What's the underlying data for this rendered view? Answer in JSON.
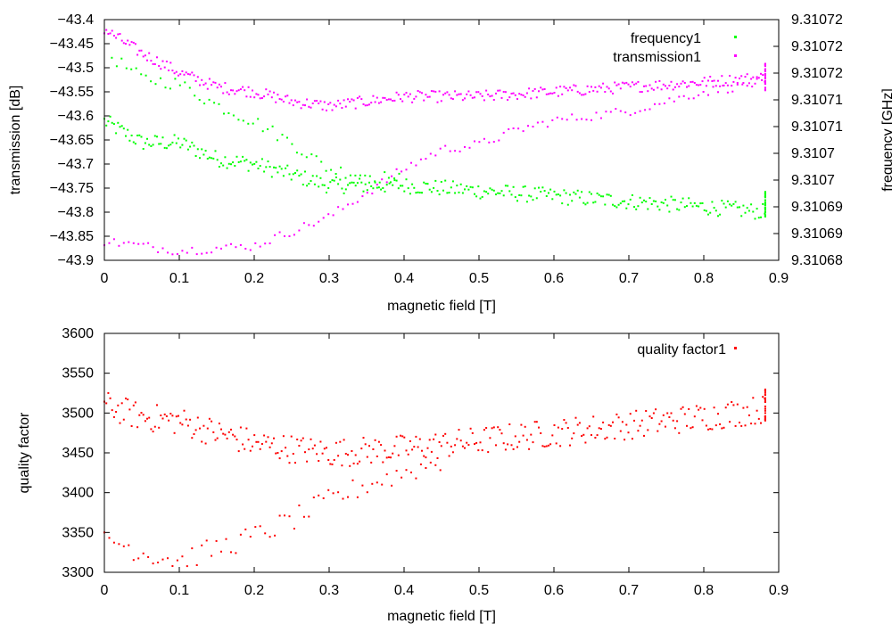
{
  "chart_data": [
    {
      "type": "scatter",
      "xlabel": "magnetic field [T]",
      "ylabel": "transmission [dB]",
      "y2label": "frequency [GHz]",
      "xlim": [
        0,
        0.9
      ],
      "ylim": [
        -43.9,
        -43.4
      ],
      "y2lim": [
        9.31068,
        9.310725
      ],
      "xticks": [
        "0",
        "0.1",
        "0.2",
        "0.3",
        "0.4",
        "0.5",
        "0.6",
        "0.7",
        "0.8",
        "0.9"
      ],
      "yticks": [
        "-43.4",
        "-43.45",
        "-43.5",
        "-43.55",
        "-43.6",
        "-43.65",
        "-43.7",
        "-43.75",
        "-43.8",
        "-43.85",
        "-43.9"
      ],
      "y2ticks": [
        "9.31072",
        "9.31072",
        "9.31072",
        "9.31071",
        "9.31071",
        "9.3107",
        "9.3107",
        "9.31069",
        "9.31069",
        "9.31068"
      ],
      "legend": "top-right",
      "series": [
        {
          "name": "frequency1",
          "axis": "y2",
          "color": "#00ff00",
          "start": {
            "x": 0.0,
            "y": 9.310706
          },
          "upper_branch": [
            [
              0.0,
              9.310706
            ],
            [
              0.05,
              9.310702
            ],
            [
              0.1,
              9.310702
            ],
            [
              0.15,
              9.310699
            ],
            [
              0.2,
              9.310698
            ],
            [
              0.25,
              9.310696
            ],
            [
              0.3,
              9.310694
            ],
            [
              0.4,
              9.310694
            ],
            [
              0.5,
              9.310693
            ],
            [
              0.6,
              9.310692
            ],
            [
              0.7,
              9.310691
            ],
            [
              0.8,
              9.31069
            ],
            [
              0.882,
              9.310689
            ]
          ],
          "lower_branch": [
            [
              0.01,
              9.310718
            ],
            [
              0.05,
              9.310714
            ],
            [
              0.1,
              9.310713
            ],
            [
              0.15,
              9.310709
            ],
            [
              0.2,
              9.310706
            ],
            [
              0.25,
              9.310702
            ],
            [
              0.3,
              9.310697
            ],
            [
              0.35,
              9.310696
            ],
            [
              0.4,
              9.310695
            ]
          ],
          "noise_half_width": 1.5e-06,
          "last_point_spread": [
            9.310688,
            9.310693
          ],
          "last_point_x": 0.882
        },
        {
          "name": "transmission1",
          "axis": "y",
          "color": "#ff00ff",
          "upper_branch": [
            [
              0.0,
              -43.42
            ],
            [
              0.05,
              -43.47
            ],
            [
              0.1,
              -43.51
            ],
            [
              0.15,
              -43.54
            ],
            [
              0.2,
              -43.55
            ],
            [
              0.25,
              -43.57
            ],
            [
              0.3,
              -43.58
            ],
            [
              0.4,
              -43.56
            ],
            [
              0.5,
              -43.56
            ],
            [
              0.6,
              -43.55
            ],
            [
              0.7,
              -43.54
            ],
            [
              0.8,
              -43.53
            ],
            [
              0.882,
              -43.52
            ]
          ],
          "lower_branch": [
            [
              0.0,
              -43.86
            ],
            [
              0.1,
              -43.88
            ],
            [
              0.2,
              -43.87
            ],
            [
              0.25,
              -43.84
            ],
            [
              0.3,
              -43.81
            ],
            [
              0.35,
              -43.76
            ],
            [
              0.4,
              -43.71
            ],
            [
              0.45,
              -43.67
            ],
            [
              0.5,
              -43.66
            ],
            [
              0.55,
              -43.63
            ],
            [
              0.6,
              -43.61
            ],
            [
              0.7,
              -43.59
            ],
            [
              0.8,
              -43.55
            ],
            [
              0.882,
              -43.53
            ]
          ],
          "noise_half_width": 0.012,
          "last_point_spread": [
            -43.55,
            -43.49
          ],
          "last_point_x": 0.882
        }
      ]
    },
    {
      "type": "scatter",
      "xlabel": "magnetic field [T]",
      "ylabel": "quality factor",
      "xlim": [
        0,
        0.9
      ],
      "ylim": [
        3300,
        3600
      ],
      "xticks": [
        "0",
        "0.1",
        "0.2",
        "0.3",
        "0.4",
        "0.5",
        "0.6",
        "0.7",
        "0.8",
        "0.9"
      ],
      "yticks": [
        "3600",
        "3550",
        "3500",
        "3450",
        "3400",
        "3350",
        "3300"
      ],
      "legend": "top-right",
      "series": [
        {
          "name": "quality factor1",
          "color": "#ff0000",
          "upper_branch": [
            [
              0.0,
              3510
            ],
            [
              0.05,
              3495
            ],
            [
              0.1,
              3490
            ],
            [
              0.15,
              3475
            ],
            [
              0.2,
              3462
            ],
            [
              0.25,
              3455
            ],
            [
              0.3,
              3450
            ],
            [
              0.4,
              3455
            ],
            [
              0.5,
              3465
            ],
            [
              0.6,
              3475
            ],
            [
              0.7,
              3485
            ],
            [
              0.8,
              3495
            ],
            [
              0.882,
              3505
            ]
          ],
          "lower_branch": [
            [
              0.0,
              3345
            ],
            [
              0.05,
              3325
            ],
            [
              0.1,
              3315
            ],
            [
              0.15,
              3330
            ],
            [
              0.2,
              3345
            ],
            [
              0.25,
              3365
            ],
            [
              0.3,
              3390
            ],
            [
              0.35,
              3410
            ],
            [
              0.4,
              3425
            ],
            [
              0.45,
              3440
            ]
          ],
          "noise_half_width": 18,
          "last_point_spread": [
            3488,
            3530
          ],
          "last_point_x": 0.882
        }
      ]
    }
  ]
}
